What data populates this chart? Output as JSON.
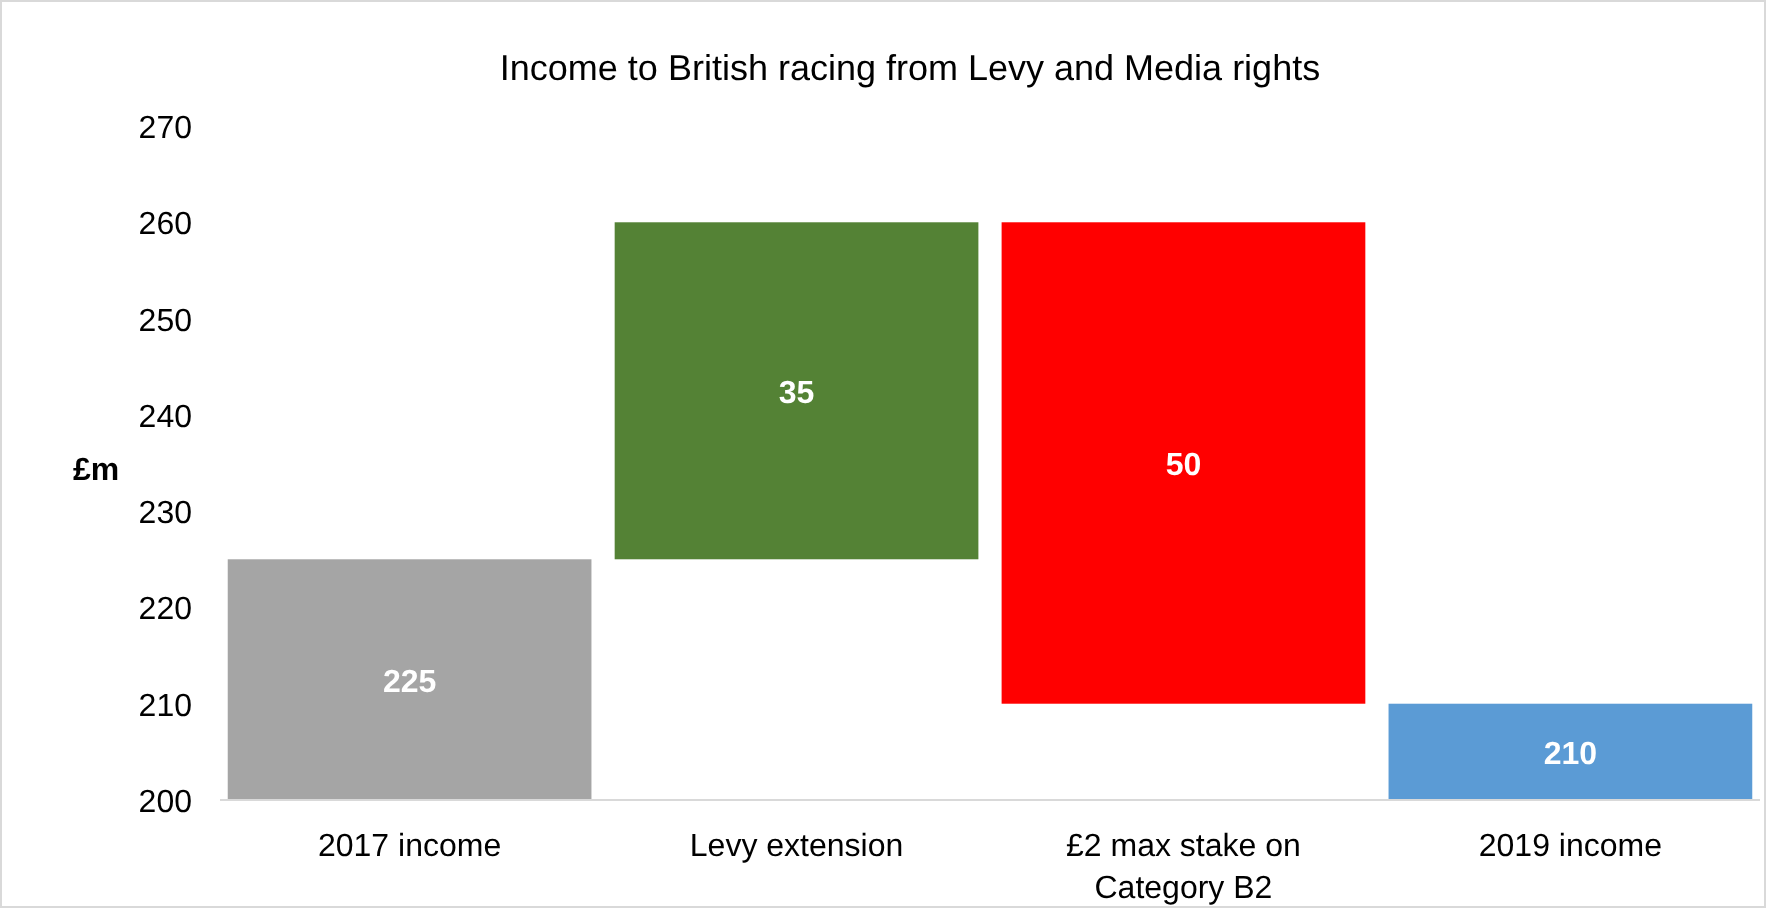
{
  "chart_data": {
    "type": "bar",
    "title": "Income to British racing from Levy and Media rights",
    "ylabel": "£m",
    "categories": [
      "2017 income",
      "Levy extension",
      "£2 max stake on Category B2",
      "2019 income"
    ],
    "base": [
      200,
      225,
      260,
      200
    ],
    "values": [
      25,
      35,
      -50,
      10
    ],
    "colors": [
      "#a5a5a5",
      "#548235",
      "#ff0000",
      "#5b9bd5"
    ],
    "value_labels": [
      "225",
      "35",
      "50",
      "210"
    ],
    "ylim": [
      200,
      270
    ],
    "yticks": [
      200,
      210,
      220,
      230,
      240,
      250,
      260,
      270
    ]
  }
}
